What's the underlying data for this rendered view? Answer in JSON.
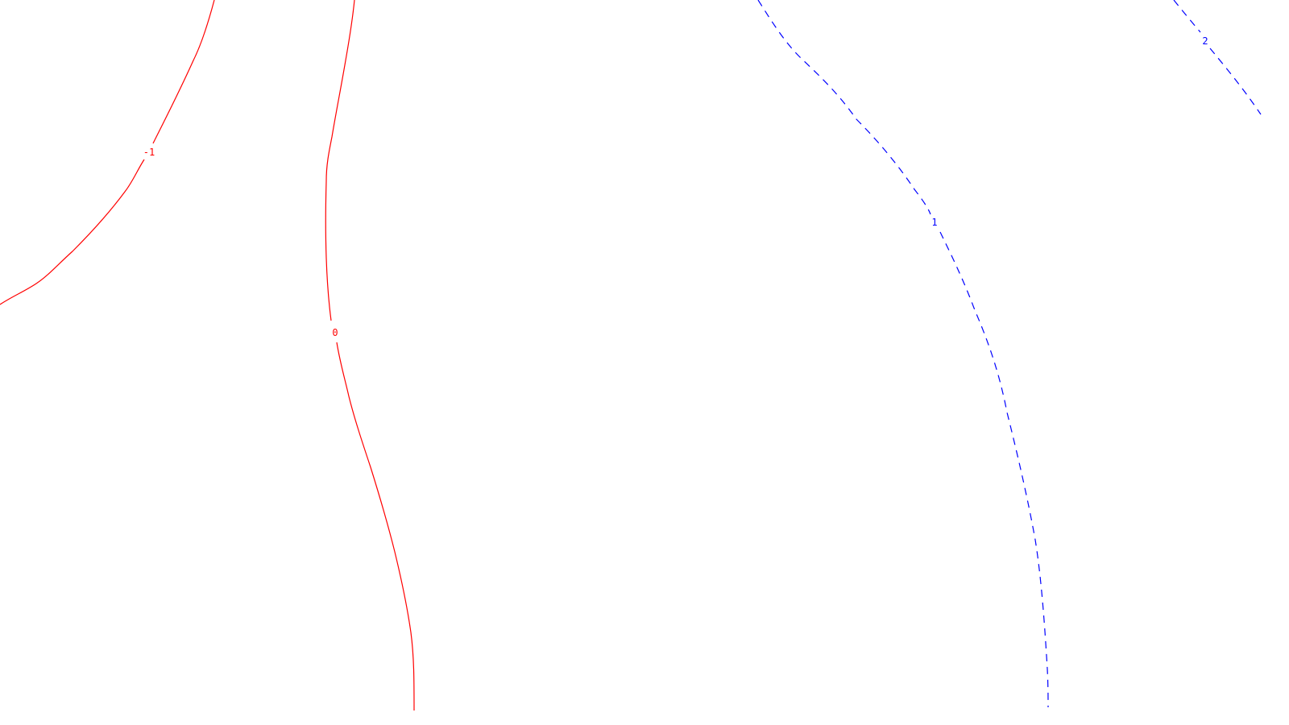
{
  "chart_data": {
    "type": "contour",
    "title": "",
    "xlabel": "",
    "ylabel": "",
    "grid": false,
    "legend": "none",
    "levels": [
      {
        "value": -1,
        "label": "-1",
        "color": "#ff0000",
        "style": "solid"
      },
      {
        "value": 0,
        "label": "0",
        "color": "#ff0000",
        "style": "solid"
      },
      {
        "value": 1,
        "label": "1",
        "color": "#0000ff",
        "style": "dashed"
      },
      {
        "value": 2,
        "label": "2",
        "color": "#0000ff",
        "style": "dashed"
      }
    ]
  }
}
